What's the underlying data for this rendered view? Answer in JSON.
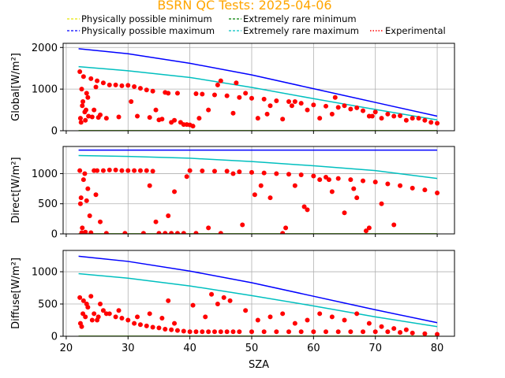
{
  "chart_data": {
    "type": "scatter",
    "title": "BSRN QC Tests: 2025-04-06",
    "title_color": "#ffa500",
    "xlabel": "SZA",
    "xlim": [
      19.5,
      82.8
    ],
    "xticks": [
      20,
      30,
      40,
      50,
      60,
      70,
      80
    ],
    "grid": true,
    "legend": {
      "placement": "top-center",
      "entries": [
        {
          "name": "Physically possible minimum",
          "color": "#e8e800",
          "style": "dashed"
        },
        {
          "name": "Physically possible maximum",
          "color": "#0000ff",
          "style": "dashed"
        },
        {
          "name": "Extremely rare minimum",
          "color": "#008000",
          "style": "dashed"
        },
        {
          "name": "Extremely rare maximum",
          "color": "#00c0c0",
          "style": "dashed"
        },
        {
          "name": "Experimental",
          "color": "#ff0000",
          "style": "dotted"
        }
      ]
    },
    "colors": {
      "phys_min": "#e8e800",
      "phys_max": "#0000ff",
      "rare_min": "#008000",
      "rare_max": "#00bfbf",
      "experimental": "#ff0000"
    },
    "panels": [
      {
        "ylabel": "Global[W/m²]",
        "ylim": [
          0,
          2100
        ],
        "yticks": [
          0,
          1000,
          2000
        ],
        "phys_max": {
          "x": [
            22,
            30,
            40,
            50,
            60,
            70,
            80
          ],
          "y": [
            1970,
            1850,
            1620,
            1340,
            1010,
            680,
            350
          ]
        },
        "rare_max": {
          "x": [
            22,
            30,
            40,
            50,
            60,
            70,
            80
          ],
          "y": [
            1540,
            1440,
            1280,
            1040,
            770,
            510,
            260
          ]
        },
        "phys_min": {
          "x": [
            22,
            80
          ],
          "y": [
            0,
            0
          ]
        },
        "rare_min": {
          "x": [
            22,
            80
          ],
          "y": [
            0,
            0
          ]
        },
        "experimental": {
          "x": [
            22.2,
            22.4,
            22.6,
            22.8,
            23.0,
            23.3,
            23.6,
            24.0,
            24.5,
            25.0,
            25.5,
            26.0,
            27.0,
            28.0,
            29.0,
            30.0,
            31.0,
            32.0,
            33.0,
            34.0,
            35.0,
            36.0,
            37.0,
            38.0,
            39.0,
            40.0,
            41.0,
            42.0,
            44.0,
            46.0,
            48.0,
            50.0,
            52.0,
            54.0,
            56.0,
            58.0,
            60.0,
            62.0,
            64.0,
            66.0,
            68.0,
            70.0,
            72.0,
            74.0,
            76.0,
            78.0,
            80.0,
            22.3,
            22.7,
            23.1,
            23.5,
            24.2,
            25.2,
            26.5,
            28.5,
            31.5,
            33.5,
            35.5,
            37.5,
            38.5,
            39.5,
            40.5,
            43.0,
            45.0,
            47.0,
            49.0,
            51.0,
            53.0,
            55.0,
            57.0,
            59.0,
            61.0,
            63.0,
            65.0,
            67.0,
            69.0,
            71.0,
            73.0,
            75.0,
            77.0,
            79.0,
            22.5,
            23.2,
            24.8,
            30.5,
            34.5,
            36.5,
            41.5,
            44.5,
            47.5,
            52.5,
            56.5,
            63.5,
            69.5
          ],
          "y": [
            1420,
            200,
            600,
            1300,
            450,
            900,
            350,
            1250,
            500,
            1200,
            380,
            1150,
            1100,
            1100,
            1080,
            1090,
            1060,
            1020,
            980,
            950,
            260,
            920,
            200,
            900,
            150,
            140,
            890,
            880,
            860,
            840,
            800,
            780,
            760,
            720,
            700,
            660,
            620,
            590,
            560,
            520,
            480,
            450,
            400,
            360,
            300,
            250,
            180,
            300,
            700,
            250,
            800,
            330,
            320,
            300,
            330,
            350,
            320,
            280,
            250,
            200,
            150,
            110,
            500,
            1200,
            420,
            900,
            300,
            600,
            280,
            700,
            500,
            300,
            400,
            600,
            550,
            350,
            300,
            350,
            250,
            300,
            200,
            1000,
            500,
            1050,
            700,
            500,
            900,
            300,
            1100,
            1150,
            400,
            600,
            800,
            350
          ]
        }
      },
      {
        "ylabel": "Direct[W/m²]",
        "ylim": [
          0,
          1450
        ],
        "yticks": [
          0,
          500,
          1000
        ],
        "phys_max": {
          "x": [
            22,
            80
          ],
          "y": [
            1390,
            1390
          ]
        },
        "rare_max": {
          "x": [
            22,
            30,
            40,
            50,
            60,
            70,
            80
          ],
          "y": [
            1300,
            1285,
            1255,
            1200,
            1130,
            1050,
            920
          ]
        },
        "phys_min": {
          "x": [
            22,
            80
          ],
          "y": [
            0,
            0
          ]
        },
        "rare_min": {
          "x": [
            22,
            80
          ],
          "y": [
            0,
            0
          ]
        },
        "experimental": {
          "x": [
            22.2,
            22.5,
            22.8,
            23.1,
            23.5,
            24.0,
            24.5,
            25.0,
            26.0,
            27.0,
            28.0,
            29.0,
            30.0,
            31.0,
            32.0,
            33.0,
            34.0,
            35.0,
            36.0,
            37.0,
            38.0,
            39.0,
            40.0,
            42.0,
            44.0,
            46.0,
            48.0,
            50.0,
            52.0,
            54.0,
            56.0,
            58.0,
            60.0,
            62.0,
            64.0,
            66.0,
            68.0,
            70.0,
            72.0,
            74.0,
            76.0,
            78.0,
            80.0,
            22.3,
            22.6,
            23.0,
            23.8,
            24.8,
            26.5,
            29.5,
            32.5,
            34.5,
            36.5,
            37.5,
            41.0,
            45.0,
            47.0,
            50.5,
            53.0,
            55.0,
            57.0,
            59.0,
            61.0,
            63.0,
            65.0,
            67.0,
            69.0,
            71.0,
            73.0,
            22.4,
            23.3,
            25.5,
            33.5,
            39.5,
            43.0,
            48.5,
            51.5,
            55.5,
            58.5,
            62.5,
            66.5,
            68.5
          ],
          "y": [
            1050,
            20,
            900,
            30,
            750,
            20,
            1050,
            1050,
            1050,
            1060,
            1060,
            1050,
            1050,
            1050,
            1050,
            1050,
            1040,
            10,
            10,
            10,
            10,
            10,
            1050,
            1045,
            1040,
            1040,
            1030,
            1020,
            1010,
            1000,
            990,
            980,
            960,
            940,
            920,
            900,
            880,
            860,
            830,
            800,
            760,
            730,
            680,
            500,
            100,
            1000,
            300,
            650,
            10,
            10,
            10,
            200,
            300,
            700,
            10,
            10,
            1000,
            650,
            600,
            10,
            800,
            400,
            900,
            700,
            350,
            600,
            100,
            500,
            150,
            600,
            550,
            200,
            800,
            950,
            100,
            150,
            800,
            100,
            450,
            900,
            750,
            50
          ]
        }
      },
      {
        "ylabel": "Diffuse[W/m²]",
        "ylim": [
          0,
          1330
        ],
        "yticks": [
          0,
          500,
          1000
        ],
        "phys_max": {
          "x": [
            22,
            30,
            40,
            50,
            60,
            70,
            80
          ],
          "y": [
            1240,
            1160,
            1010,
            830,
            620,
            410,
            210
          ]
        },
        "rare_max": {
          "x": [
            22,
            30,
            40,
            50,
            60,
            70,
            80
          ],
          "y": [
            970,
            900,
            780,
            630,
            470,
            300,
            150
          ]
        },
        "phys_min": {
          "x": [
            22,
            80
          ],
          "y": [
            0,
            0
          ]
        },
        "rare_min": {
          "x": [
            22,
            80
          ],
          "y": [
            0,
            0
          ]
        },
        "experimental": {
          "x": [
            22.2,
            22.5,
            22.8,
            23.1,
            23.5,
            24.0,
            24.5,
            25.0,
            25.5,
            26.0,
            27.0,
            28.0,
            29.0,
            30.0,
            31.0,
            32.0,
            33.0,
            34.0,
            35.0,
            36.0,
            37.0,
            38.0,
            39.0,
            40.0,
            41.0,
            42.0,
            43.0,
            44.0,
            45.0,
            46.0,
            47.0,
            48.0,
            50.0,
            52.0,
            54.0,
            56.0,
            58.0,
            60.0,
            62.0,
            64.0,
            66.0,
            68.0,
            70.0,
            72.0,
            74.0,
            76.0,
            78.0,
            80.0,
            22.3,
            22.7,
            23.3,
            24.2,
            25.2,
            26.5,
            28.5,
            31.5,
            33.5,
            35.5,
            36.5,
            37.5,
            40.5,
            42.5,
            43.5,
            44.5,
            45.5,
            46.5,
            49.0,
            51.0,
            53.0,
            55.0,
            57.0,
            59.0,
            61.0,
            63.0,
            65.0,
            67.0,
            69.0,
            71.0,
            73.0,
            75.0
          ],
          "y": [
            600,
            150,
            550,
            300,
            450,
            620,
            350,
            250,
            500,
            400,
            350,
            300,
            280,
            250,
            200,
            180,
            160,
            140,
            130,
            110,
            100,
            90,
            80,
            70,
            70,
            70,
            70,
            70,
            70,
            70,
            70,
            70,
            70,
            70,
            70,
            70,
            70,
            70,
            70,
            70,
            70,
            70,
            70,
            70,
            60,
            50,
            40,
            30,
            200,
            350,
            500,
            250,
            300,
            350,
            400,
            300,
            350,
            280,
            550,
            200,
            480,
            300,
            650,
            500,
            600,
            550,
            400,
            250,
            300,
            350,
            200,
            250,
            350,
            300,
            250,
            350,
            200,
            150,
            120,
            100
          ]
        }
      }
    ]
  }
}
